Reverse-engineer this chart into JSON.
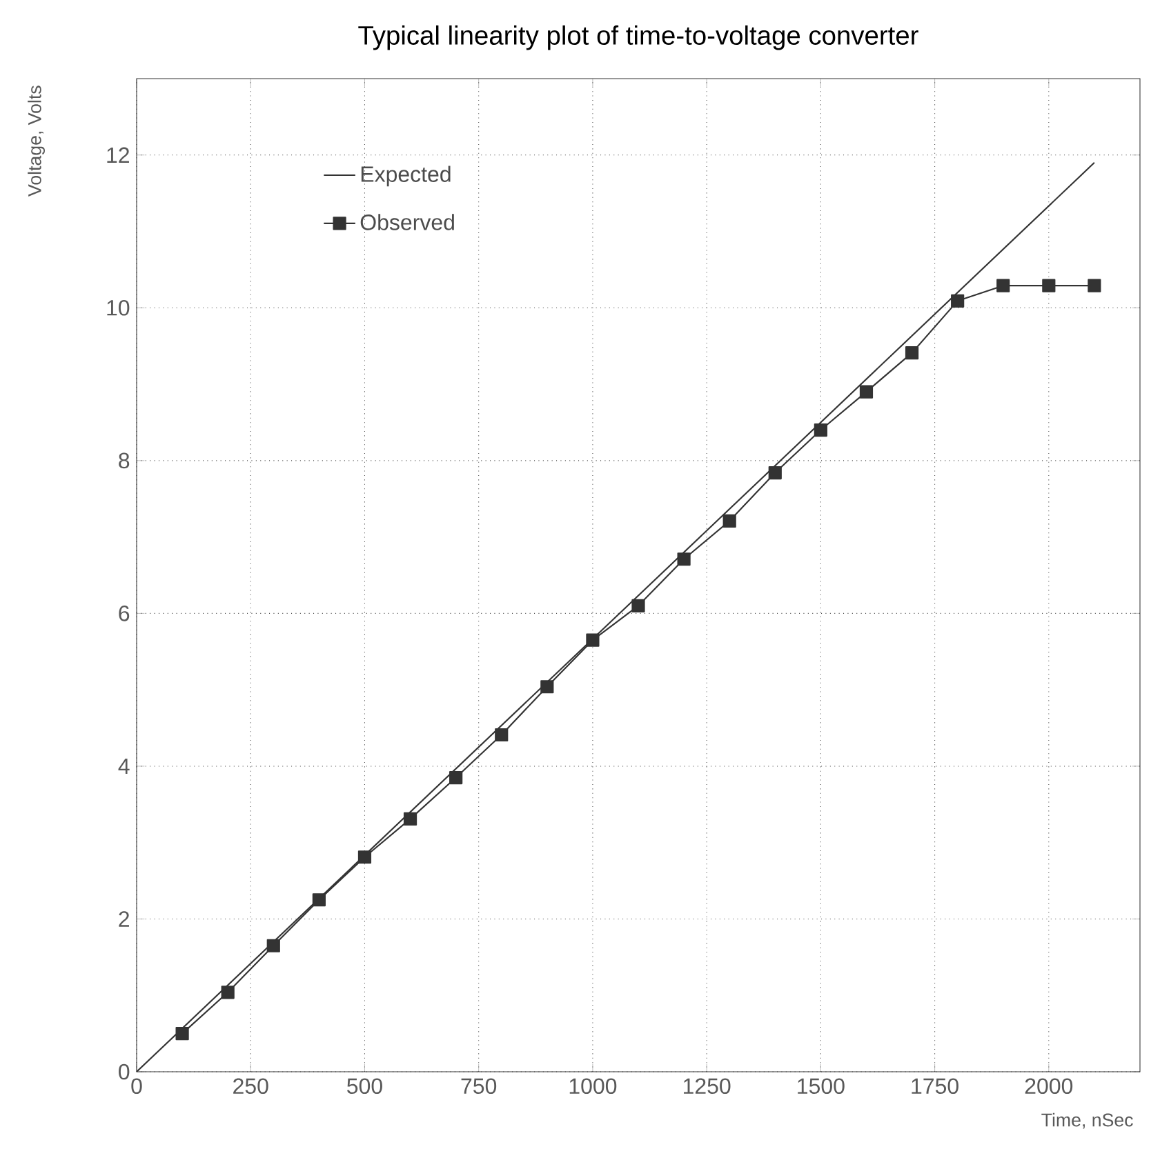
{
  "chart_data": {
    "type": "line",
    "title": "Typical linearity plot of time-to-voltage converter",
    "xlabel": "Time, nSec",
    "ylabel": "Voltage, Volts",
    "series": [
      {
        "name": "Expected",
        "color": "#333333",
        "marker": "none",
        "x": [
          0,
          2100
        ],
        "values": [
          0,
          11.9
        ]
      },
      {
        "name": "Observed",
        "color": "#333333",
        "marker": "square",
        "x": [
          100,
          200,
          300,
          400,
          500,
          600,
          700,
          800,
          900,
          1000,
          1100,
          1200,
          1300,
          1400,
          1500,
          1600,
          1700,
          1800,
          1900,
          2000,
          2100
        ],
        "values": [
          0.5,
          1.04,
          1.65,
          2.25,
          2.81,
          3.31,
          3.85,
          4.41,
          5.04,
          5.65,
          6.1,
          6.71,
          7.21,
          7.84,
          8.4,
          8.9,
          9.41,
          10.09,
          10.29,
          10.29,
          10.29
        ]
      }
    ],
    "xlim": [
      0,
      2200
    ],
    "ylim": [
      0,
      13
    ],
    "xticks": [
      0,
      250,
      500,
      750,
      1000,
      1250,
      1500,
      1750,
      2000
    ],
    "yticks": [
      0,
      2,
      4,
      6,
      8,
      10,
      12
    ],
    "grid": true,
    "legend": "top left",
    "line_style": "solid"
  }
}
